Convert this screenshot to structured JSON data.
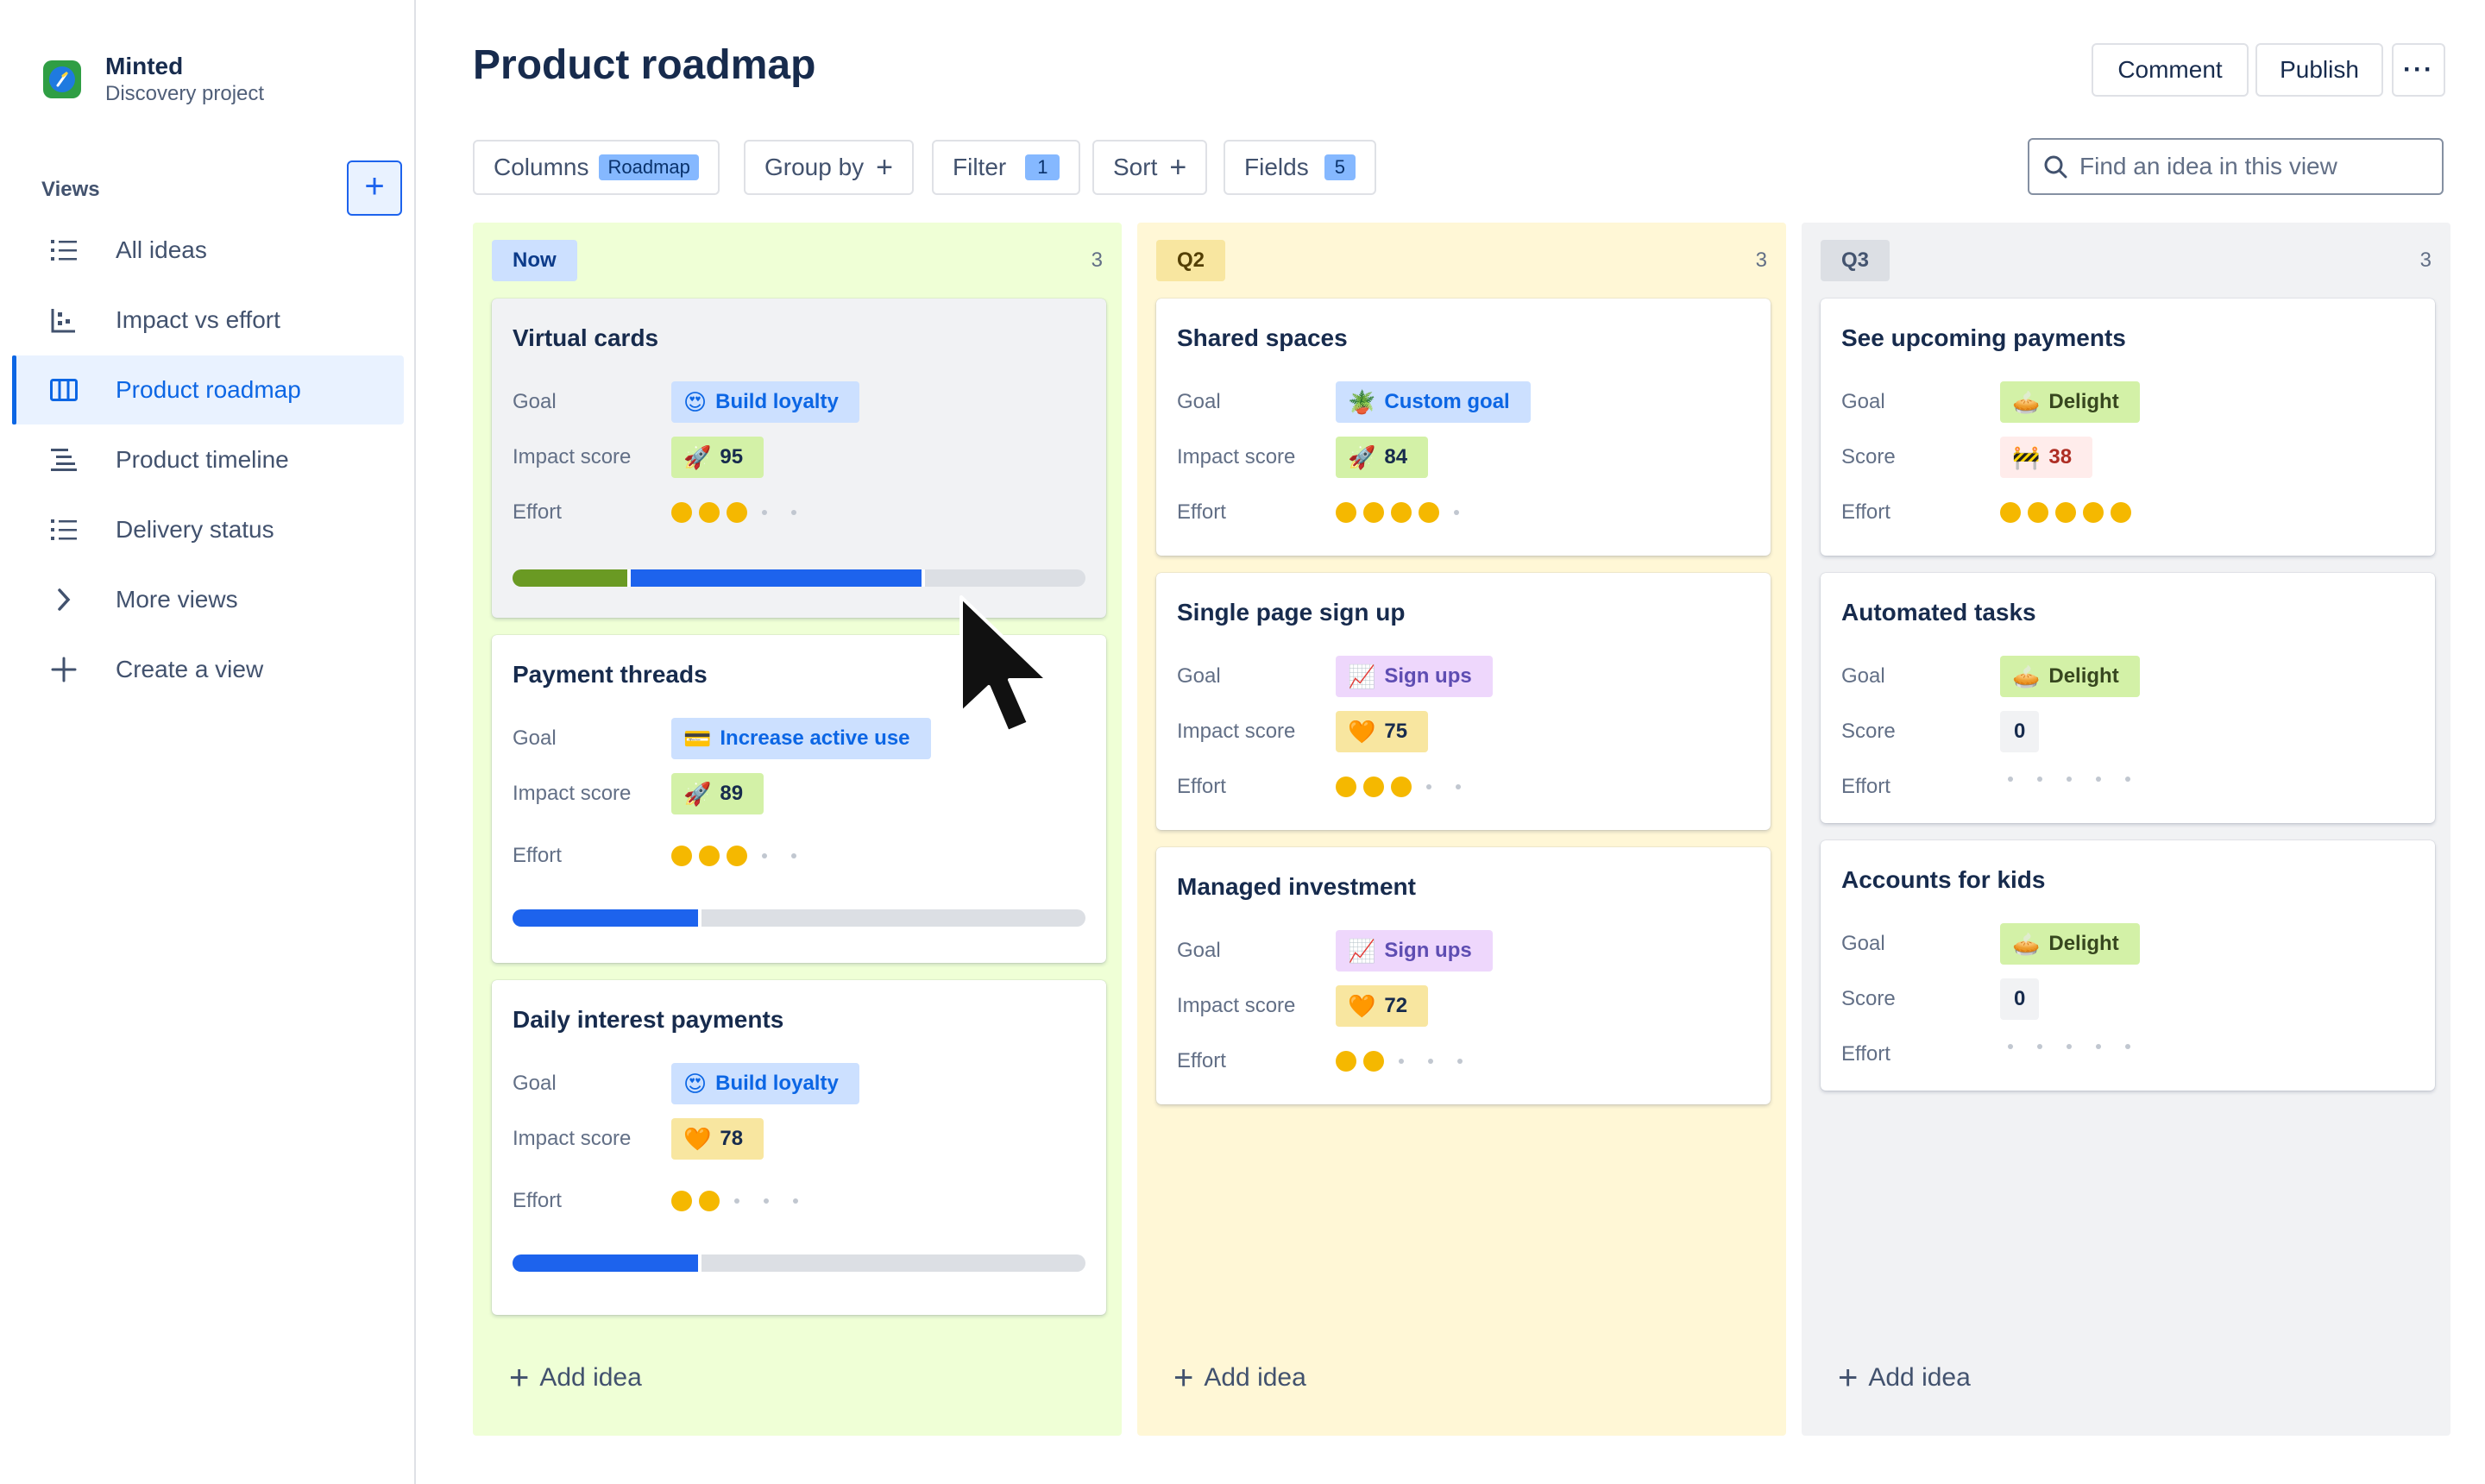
{
  "project": {
    "name": "Minted",
    "subtitle": "Discovery project"
  },
  "sidebar": {
    "views_label": "Views",
    "items": [
      {
        "label": "All ideas",
        "icon": "list-icon"
      },
      {
        "label": "Impact vs effort",
        "icon": "scatter-chart-icon"
      },
      {
        "label": "Product roadmap",
        "icon": "board-icon",
        "active": true
      },
      {
        "label": "Product timeline",
        "icon": "timeline-icon"
      },
      {
        "label": "Delivery status",
        "icon": "list-icon"
      },
      {
        "label": "More views",
        "icon": "chevron-right-icon"
      },
      {
        "label": "Create a view",
        "icon": "plus-icon"
      }
    ]
  },
  "header": {
    "title": "Product roadmap",
    "comment": "Comment",
    "publish": "Publish",
    "more": "···"
  },
  "toolbar": {
    "columns": "Columns",
    "columns_badge": "Roadmap",
    "group_by": "Group by",
    "filter": "Filter",
    "filter_badge": "1",
    "sort": "Sort",
    "fields": "Fields",
    "fields_badge": "5",
    "search_placeholder": "Find an idea in this view"
  },
  "columns": [
    {
      "tag": "Now",
      "count": "3",
      "add_label": "Add idea",
      "cards": [
        {
          "title": "Virtual cards",
          "goal_label": "Goal",
          "goal": "Build loyalty",
          "goal_emoji": "😍",
          "score_label": "Impact score",
          "score": "95",
          "score_emoji": "🚀",
          "effort_label": "Effort",
          "effort": 3,
          "progress": {
            "done": 0.2,
            "in_progress": 0.52
          }
        },
        {
          "title": "Payment threads",
          "goal_label": "Goal",
          "goal": "Increase active use",
          "goal_emoji": "💳",
          "score_label": "Impact score",
          "score": "89",
          "score_emoji": "🚀",
          "effort_label": "Effort",
          "effort": 3,
          "progress": {
            "done": 0,
            "in_progress": 0.33
          }
        },
        {
          "title": "Daily interest payments",
          "goal_label": "Goal",
          "goal": "Build loyalty",
          "goal_emoji": "😍",
          "score_label": "Impact score",
          "score": "78",
          "score_emoji": "🧡",
          "effort_label": "Effort",
          "effort": 2,
          "progress": {
            "done": 0,
            "in_progress": 0.33
          }
        }
      ]
    },
    {
      "tag": "Q2",
      "count": "3",
      "add_label": "Add idea",
      "cards": [
        {
          "title": "Shared spaces",
          "goal_label": "Goal",
          "goal": "Custom goal",
          "goal_emoji": "🪴",
          "score_label": "Impact score",
          "score": "84",
          "score_emoji": "🚀",
          "effort_label": "Effort",
          "effort": 4
        },
        {
          "title": "Single page sign up",
          "goal_label": "Goal",
          "goal": "Sign ups",
          "goal_emoji": "📈",
          "score_label": "Impact score",
          "score": "75",
          "score_emoji": "🧡",
          "effort_label": "Effort",
          "effort": 3
        },
        {
          "title": "Managed investment",
          "goal_label": "Goal",
          "goal": "Sign ups",
          "goal_emoji": "📈",
          "score_label": "Impact score",
          "score": "72",
          "score_emoji": "🧡",
          "effort_label": "Effort",
          "effort": 2
        }
      ]
    },
    {
      "tag": "Q3",
      "count": "3",
      "add_label": "Add idea",
      "cards": [
        {
          "title": "See upcoming payments",
          "goal_label": "Goal",
          "goal": "Delight",
          "goal_emoji": "🥧",
          "score_label": "Score",
          "score": "38",
          "score_emoji": "🚧",
          "effort_label": "Effort",
          "effort": 5
        },
        {
          "title": "Automated tasks",
          "goal_label": "Goal",
          "goal": "Delight",
          "goal_emoji": "🥧",
          "score_label": "Score",
          "score": "0",
          "score_emoji": "",
          "effort_label": "Effort",
          "effort": 0
        },
        {
          "title": "Accounts for kids",
          "goal_label": "Goal",
          "goal": "Delight",
          "goal_emoji": "🥧",
          "score_label": "Score",
          "score": "0",
          "score_emoji": "",
          "effort_label": "Effort",
          "effort": 0
        }
      ]
    }
  ],
  "colors": {
    "accent": "#0c66e4",
    "now_bg": "#efffd6",
    "now_tag": "#cce0ff",
    "q2_bg": "#fff7d6",
    "q2_tag": "#f8e6a0",
    "q3_bg": "#f1f2f4",
    "q3_tag": "#dcdfe4",
    "progress_done": "#6a9a23",
    "progress_in_progress": "#1d63ed",
    "progress_todo": "#dcdfe4"
  }
}
